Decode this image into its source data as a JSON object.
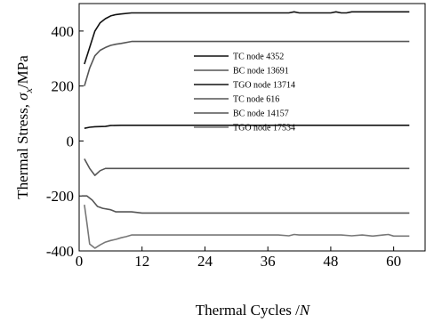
{
  "chart_data": {
    "type": "line",
    "xlabel": "Thermal Cycles /N",
    "ylabel": "Thermal Stress, σx/MPa",
    "xlim": [
      0,
      66
    ],
    "ylim": [
      -400,
      500
    ],
    "xticks": [
      0,
      12,
      24,
      36,
      48,
      60
    ],
    "yticks": [
      -400,
      -200,
      0,
      200,
      400
    ],
    "grid": false,
    "legend_position": "upper-center",
    "series": [
      {
        "name": "TC node 4352",
        "color": "#111111",
        "points": [
          [
            1,
            280
          ],
          [
            2,
            340
          ],
          [
            3,
            400
          ],
          [
            4,
            430
          ],
          [
            5,
            445
          ],
          [
            6,
            455
          ],
          [
            7,
            460
          ],
          [
            8,
            462
          ],
          [
            10,
            466
          ],
          [
            15,
            466
          ],
          [
            20,
            466
          ],
          [
            30,
            466
          ],
          [
            38,
            466
          ],
          [
            40,
            466
          ],
          [
            41,
            470
          ],
          [
            42,
            466
          ],
          [
            45,
            466
          ],
          [
            48,
            466
          ],
          [
            49,
            470
          ],
          [
            50,
            466
          ],
          [
            51,
            466
          ],
          [
            52,
            470
          ],
          [
            55,
            470
          ],
          [
            60,
            470
          ],
          [
            63,
            470
          ]
        ]
      },
      {
        "name": "BC node 13691",
        "color": "#555555",
        "points": [
          [
            1,
            200
          ],
          [
            2,
            265
          ],
          [
            3,
            310
          ],
          [
            4,
            330
          ],
          [
            5,
            340
          ],
          [
            6,
            348
          ],
          [
            7,
            352
          ],
          [
            8,
            355
          ],
          [
            10,
            362
          ],
          [
            15,
            362
          ],
          [
            20,
            362
          ],
          [
            30,
            362
          ],
          [
            40,
            362
          ],
          [
            50,
            362
          ],
          [
            60,
            362
          ],
          [
            63,
            362
          ]
        ]
      },
      {
        "name": "TGO node 13714",
        "color": "#111111",
        "points": [
          [
            1,
            46
          ],
          [
            2,
            50
          ],
          [
            3,
            52
          ],
          [
            5,
            53
          ],
          [
            6,
            56
          ],
          [
            8,
            57
          ],
          [
            10,
            57
          ],
          [
            20,
            57
          ],
          [
            30,
            57
          ],
          [
            40,
            57
          ],
          [
            50,
            57
          ],
          [
            60,
            57
          ],
          [
            63,
            57
          ]
        ]
      },
      {
        "name": "TC node 616",
        "color": "#555555",
        "points": [
          [
            1,
            -65
          ],
          [
            2,
            -100
          ],
          [
            3,
            -125
          ],
          [
            4,
            -108
          ],
          [
            5,
            -100
          ],
          [
            6,
            -100
          ],
          [
            8,
            -100
          ],
          [
            10,
            -100
          ],
          [
            20,
            -100
          ],
          [
            30,
            -100
          ],
          [
            40,
            -100
          ],
          [
            50,
            -100
          ],
          [
            60,
            -100
          ],
          [
            63,
            -100
          ]
        ]
      },
      {
        "name": "BC node 14157",
        "color": "#555555",
        "points": [
          [
            0.5,
            -200
          ],
          [
            1.5,
            -200
          ],
          [
            2.5,
            -215
          ],
          [
            3.5,
            -238
          ],
          [
            4.5,
            -245
          ],
          [
            6,
            -250
          ],
          [
            7,
            -258
          ],
          [
            10,
            -258
          ],
          [
            12,
            -262
          ],
          [
            20,
            -262
          ],
          [
            30,
            -262
          ],
          [
            40,
            -262
          ],
          [
            50,
            -262
          ],
          [
            60,
            -262
          ],
          [
            63,
            -262
          ]
        ]
      },
      {
        "name": "TGO node 17534",
        "color": "#777777",
        "points": [
          [
            1,
            -232
          ],
          [
            1.5,
            -300
          ],
          [
            2,
            -375
          ],
          [
            3,
            -390
          ],
          [
            4,
            -378
          ],
          [
            5,
            -368
          ],
          [
            6,
            -362
          ],
          [
            7,
            -358
          ],
          [
            8,
            -352
          ],
          [
            9,
            -348
          ],
          [
            10,
            -342
          ],
          [
            15,
            -342
          ],
          [
            20,
            -342
          ],
          [
            30,
            -342
          ],
          [
            38,
            -342
          ],
          [
            40,
            -345
          ],
          [
            41,
            -340
          ],
          [
            42,
            -342
          ],
          [
            48,
            -342
          ],
          [
            50,
            -342
          ],
          [
            52,
            -345
          ],
          [
            54,
            -342
          ],
          [
            56,
            -346
          ],
          [
            58,
            -342
          ],
          [
            59,
            -340
          ],
          [
            60,
            -346
          ],
          [
            63,
            -346
          ]
        ]
      }
    ]
  }
}
